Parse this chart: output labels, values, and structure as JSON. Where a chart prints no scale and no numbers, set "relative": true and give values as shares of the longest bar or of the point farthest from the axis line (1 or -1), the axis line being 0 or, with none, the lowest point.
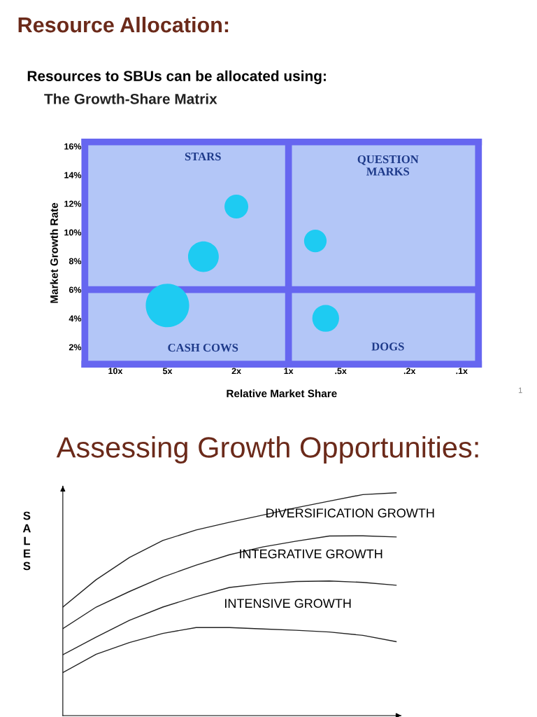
{
  "chart_data": [
    {
      "type": "bubble",
      "title": "Resource Allocation:",
      "subtitle": "Resources to SBUs can be allocated using:",
      "xlabel": "Relative Market Share",
      "ylabel": "Market Growth Rate",
      "log": "x",
      "xlim": [
        15,
        0.08
      ],
      "xticks": [
        {
          "value": 10,
          "label": "10x"
        },
        {
          "value": 5,
          "label": "5x"
        },
        {
          "value": 2,
          "label": "2x"
        },
        {
          "value": 1,
          "label": "1x"
        },
        {
          "value": 0.5,
          "label": ".5x"
        },
        {
          "value": 0.2,
          "label": ".2x"
        },
        {
          "value": 0.1,
          "label": ".1x"
        }
      ],
      "ylim": [
        0.8,
        16.3
      ],
      "yticks": [
        {
          "value": 2,
          "label": "2%"
        },
        {
          "value": 4,
          "label": "4%"
        },
        {
          "value": 6,
          "label": "6%"
        },
        {
          "value": 8,
          "label": "8%"
        },
        {
          "value": 10,
          "label": "10%"
        },
        {
          "value": 12,
          "label": "12%"
        },
        {
          "value": 14,
          "label": "14%"
        },
        {
          "value": 16,
          "label": "16%"
        }
      ],
      "x": [
        2,
        3.1,
        5,
        0.7,
        0.61
      ],
      "series": [
        {
          "color": "#1ecbf2",
          "values": [
            11.8,
            8.3,
            4.9,
            9.4,
            4.0
          ],
          "sizes": [
            0.3,
            0.5,
            1,
            0.27,
            0.38
          ]
        }
      ],
      "ref_lines": [
        {
          "axis": "x",
          "value": 1,
          "color": "#6666f0"
        },
        {
          "axis": "y",
          "value": 6,
          "color": "#6666f0"
        }
      ],
      "grid": false,
      "annotations": [
        "STARS",
        "QUESTION\nMARKS",
        "CASH COWS",
        "DOGS",
        "The Growth-Share Matrix",
        "1"
      ]
    },
    {
      "type": "line",
      "title": "Assessing Growth Opportunities:",
      "ylabel": "SALES",
      "relative": true,
      "grid": false,
      "legend": false,
      "marker": "none",
      "line_style": "solid",
      "categories": [
        null,
        null,
        null,
        null,
        null,
        null,
        null,
        null,
        null,
        null,
        null
      ],
      "series": [
        {
          "color": "#222222",
          "values": [
            0.487,
            0.61,
            0.71,
            0.786,
            0.833,
            0.868,
            0.9,
            0.933,
            0.963,
            0.992,
            1
          ]
        },
        {
          "color": "#222222",
          "values": [
            0.39,
            0.487,
            0.557,
            0.622,
            0.675,
            0.722,
            0.757,
            0.783,
            0.806,
            0.807,
            0.802
          ]
        },
        {
          "color": "#222222",
          "values": [
            0.273,
            0.352,
            0.428,
            0.487,
            0.534,
            0.575,
            0.592,
            0.602,
            0.604,
            0.598,
            0.585
          ]
        },
        {
          "color": "#222222",
          "values": [
            0.193,
            0.275,
            0.328,
            0.369,
            0.395,
            0.395,
            0.389,
            0.383,
            0.375,
            0.36,
            0.332
          ]
        }
      ],
      "annotations": [
        "DIVERSIFICATION GROWTH",
        "INTEGRATIVE GROWTH",
        "INTENSIVE GROWTH"
      ]
    }
  ]
}
